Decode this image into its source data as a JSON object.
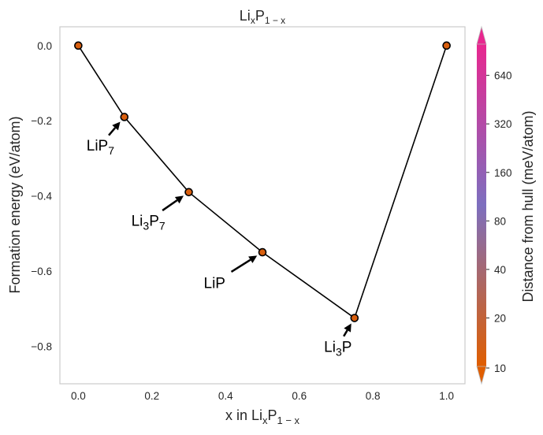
{
  "chart_data": {
    "type": "line",
    "title": {
      "base": "Li",
      "sub1": "x",
      "mid": "P",
      "sub2": "1 − x"
    },
    "xlabel": {
      "prefix": "x in ",
      "base": "Li",
      "sub1": "x",
      "mid": "P",
      "sub2": "1 − x"
    },
    "ylabel": "Formation energy (eV/atom)",
    "xlim": [
      -0.05,
      1.05
    ],
    "ylim": [
      -0.9,
      0.05
    ],
    "x_ticks": [
      0.0,
      0.2,
      0.4,
      0.6,
      0.8,
      1.0
    ],
    "x_tick_labels": [
      "0.0",
      "0.2",
      "0.4",
      "0.6",
      "0.8",
      "1.0"
    ],
    "y_ticks": [
      0.0,
      -0.2,
      -0.4,
      -0.6,
      -0.8
    ],
    "y_tick_labels": [
      "0.0",
      "−0.2",
      "−0.4",
      "−0.6",
      "−0.8"
    ],
    "grid": false,
    "series": [
      {
        "x": [
          0.0,
          0.125,
          0.3,
          0.5,
          0.75,
          1.0
        ],
        "y": [
          0.0,
          -0.19,
          -0.39,
          -0.55,
          -0.725,
          0.0
        ],
        "marker_color": "#d95f0e",
        "line_color": "#000000"
      }
    ],
    "annotations": [
      {
        "parts": [
          {
            "t": "LiP",
            "sub": false
          },
          {
            "t": "7",
            "sub": true
          }
        ],
        "point_index": 1,
        "text_x": 0.06,
        "text_y": -0.265
      },
      {
        "parts": [
          {
            "t": "Li",
            "sub": false
          },
          {
            "t": "3",
            "sub": true
          },
          {
            "t": "P",
            "sub": false
          },
          {
            "t": "7",
            "sub": true
          }
        ],
        "point_index": 2,
        "text_x": 0.19,
        "text_y": -0.465
      },
      {
        "parts": [
          {
            "t": "LiP",
            "sub": false
          }
        ],
        "point_index": 3,
        "text_x": 0.37,
        "text_y": -0.63
      },
      {
        "parts": [
          {
            "t": "Li",
            "sub": false
          },
          {
            "t": "3",
            "sub": true
          },
          {
            "t": "P",
            "sub": false
          }
        ],
        "point_index": 4,
        "text_x": 0.705,
        "text_y": -0.8
      }
    ],
    "colorbar": {
      "label": "Distance from hull (meV/atom)",
      "scale": "log",
      "range": [
        10,
        1000
      ],
      "ticks": [
        10,
        20,
        40,
        80,
        160,
        320,
        640
      ],
      "tick_labels": [
        "10",
        "20",
        "40",
        "80",
        "160",
        "320",
        "640"
      ],
      "colors": [
        "#e05e00",
        "#7d6fbf",
        "#e8278f"
      ],
      "extend": "both"
    }
  }
}
